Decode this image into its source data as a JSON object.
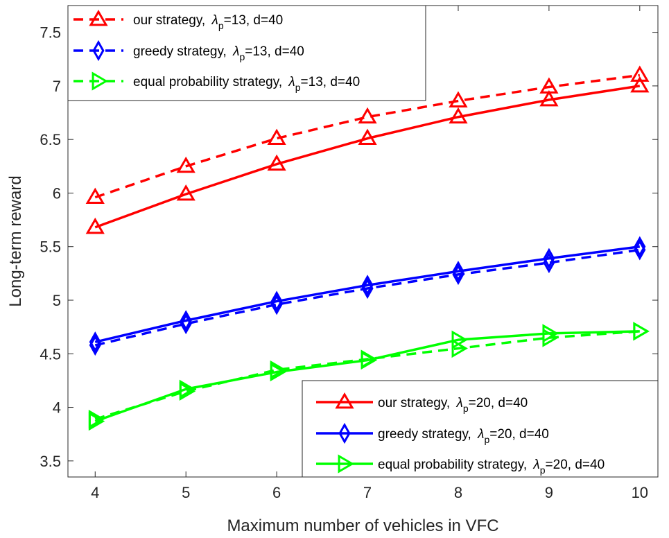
{
  "chart_data": {
    "type": "line",
    "title": "",
    "xlabel": "Maximum number of vehicles in VFC",
    "ylabel": "Long-term reward",
    "x": [
      4,
      5,
      6,
      7,
      8,
      9,
      10
    ],
    "xlim": [
      3.7,
      10.2
    ],
    "ylim": [
      3.35,
      7.75
    ],
    "xticks": [
      "4",
      "5",
      "6",
      "7",
      "8",
      "9",
      "10"
    ],
    "yticks": [
      {
        "value": 3.5,
        "label": "3.5"
      },
      {
        "value": 4,
        "label": "4"
      },
      {
        "value": 4.5,
        "label": "4.5"
      },
      {
        "value": 5,
        "label": "5"
      },
      {
        "value": 5.5,
        "label": "5.5"
      },
      {
        "value": 6,
        "label": "6"
      },
      {
        "value": 6.5,
        "label": "6.5"
      },
      {
        "value": 7,
        "label": "7"
      },
      {
        "value": 7.5,
        "label": "7.5"
      }
    ],
    "grid": false,
    "series": [
      {
        "id": "ours13",
        "legend_main": "our strategy,",
        "legend_lambda": "λ",
        "legend_sub": "p",
        "legend_rest": "=13, d=40",
        "color": "#ff0000",
        "dash": "dashed",
        "marker": "triangle-up",
        "values": [
          5.96,
          6.25,
          6.51,
          6.71,
          6.86,
          6.99,
          7.1
        ]
      },
      {
        "id": "greedy13",
        "legend_main": "greedy strategy,",
        "legend_lambda": "λ",
        "legend_sub": "p",
        "legend_rest": "=13, d=40",
        "color": "#0000ff",
        "dash": "dashed",
        "marker": "diamond",
        "values": [
          4.58,
          4.78,
          4.96,
          5.11,
          5.24,
          5.35,
          5.47
        ]
      },
      {
        "id": "equal13",
        "legend_main": "equal probability strategy,",
        "legend_lambda": "λ",
        "legend_sub": "p",
        "legend_rest": "=13, d=40",
        "color": "#00ff00",
        "dash": "dashed",
        "marker": "triangle-right",
        "values": [
          3.89,
          4.15,
          4.35,
          4.45,
          4.55,
          4.65,
          4.71
        ]
      },
      {
        "id": "ours20",
        "legend_main": "our strategy,",
        "legend_lambda": "λ",
        "legend_sub": "p",
        "legend_rest": "=20, d=40",
        "color": "#ff0000",
        "dash": "solid",
        "marker": "triangle-up",
        "values": [
          5.68,
          5.99,
          6.27,
          6.51,
          6.71,
          6.87,
          7.0
        ]
      },
      {
        "id": "greedy20",
        "legend_main": "greedy strategy,",
        "legend_lambda": "λ",
        "legend_sub": "p",
        "legend_rest": "=20, d=40",
        "color": "#0000ff",
        "dash": "solid",
        "marker": "diamond",
        "values": [
          4.61,
          4.81,
          4.99,
          5.14,
          5.27,
          5.39,
          5.5
        ]
      },
      {
        "id": "equal20",
        "legend_main": "equal probability strategy,",
        "legend_lambda": "λ",
        "legend_sub": "p",
        "legend_rest": "=20, d=40",
        "color": "#00ff00",
        "dash": "solid",
        "marker": "triangle-right",
        "values": [
          3.87,
          4.17,
          4.33,
          4.44,
          4.63,
          4.69,
          4.71
        ]
      }
    ],
    "legends": [
      {
        "placement": "top-left",
        "series_ids": [
          "ours13",
          "greedy13",
          "equal13"
        ]
      },
      {
        "placement": "bottom-right",
        "series_ids": [
          "ours20",
          "greedy20",
          "equal20"
        ]
      }
    ]
  }
}
